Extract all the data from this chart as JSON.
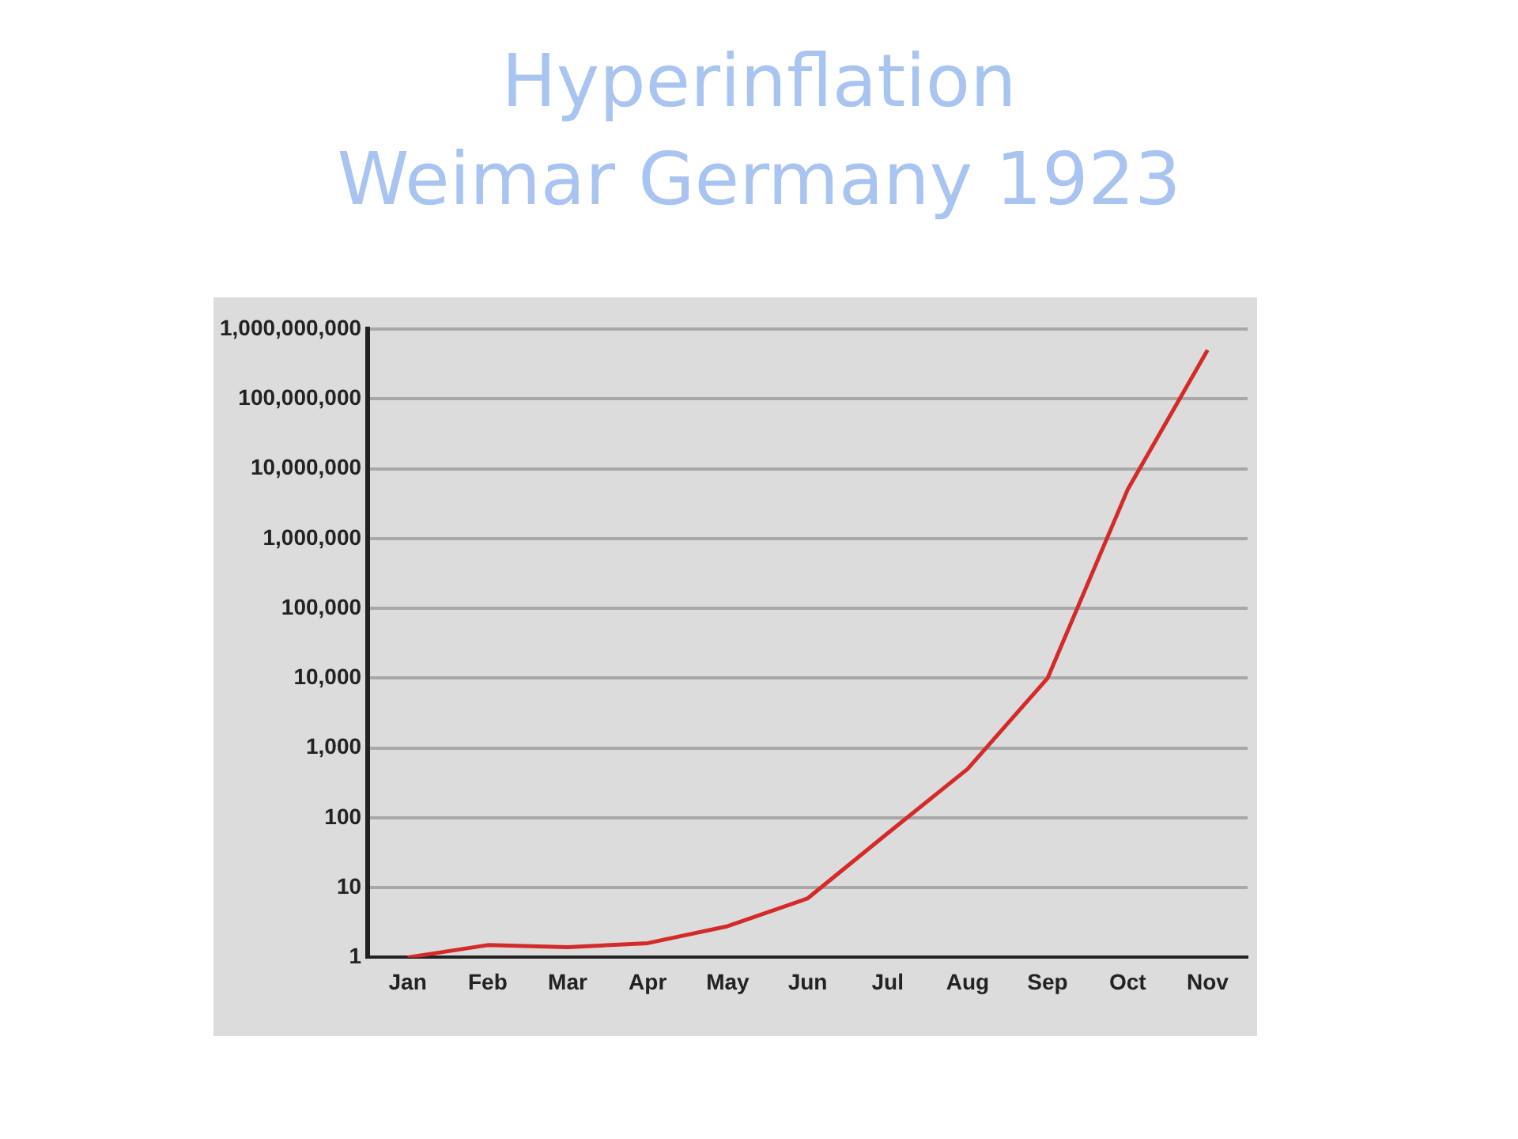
{
  "chart_data": {
    "type": "line",
    "title": "Hyperinflation\nWeimar Germany 1923",
    "categories": [
      "Jan",
      "Feb",
      "Mar",
      "Apr",
      "May",
      "Jun",
      "Jul",
      "Aug",
      "Sep",
      "Oct",
      "Nov"
    ],
    "series": [
      {
        "color": "#d42a2a",
        "values": [
          1,
          1.5,
          1.4,
          1.6,
          2.8,
          7,
          60,
          500,
          10000,
          5000000,
          500000000
        ]
      }
    ],
    "log": "y",
    "ylim": [
      1,
      1000000000
    ],
    "yticks": [
      1,
      10,
      100,
      {
        "value": 1000,
        "label": "1,000"
      },
      {
        "value": 10000,
        "label": "10,000"
      },
      {
        "value": 100000,
        "label": "100,000"
      },
      {
        "value": 1000000,
        "label": "1,000,000"
      },
      {
        "value": 10000000,
        "label": "10,000,000"
      },
      {
        "value": 100000000,
        "label": "100,000,000"
      },
      {
        "value": 1000000000,
        "label": "1,000,000,000"
      }
    ],
    "grid": "y",
    "legend": false,
    "marker": "none",
    "line_style": "solid"
  }
}
